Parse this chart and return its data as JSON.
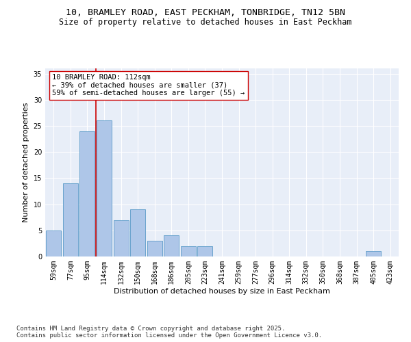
{
  "title1": "10, BRAMLEY ROAD, EAST PECKHAM, TONBRIDGE, TN12 5BN",
  "title2": "Size of property relative to detached houses in East Peckham",
  "xlabel": "Distribution of detached houses by size in East Peckham",
  "ylabel": "Number of detached properties",
  "categories": [
    "59sqm",
    "77sqm",
    "95sqm",
    "114sqm",
    "132sqm",
    "150sqm",
    "168sqm",
    "186sqm",
    "205sqm",
    "223sqm",
    "241sqm",
    "259sqm",
    "277sqm",
    "296sqm",
    "314sqm",
    "332sqm",
    "350sqm",
    "368sqm",
    "387sqm",
    "405sqm",
    "423sqm"
  ],
  "values": [
    5,
    14,
    24,
    26,
    7,
    9,
    3,
    4,
    2,
    2,
    0,
    0,
    0,
    0,
    0,
    0,
    0,
    0,
    0,
    1,
    0
  ],
  "bar_color": "#aec6e8",
  "bar_edge_color": "#5a9ac8",
  "vline_x": 2.5,
  "vline_color": "#cc0000",
  "annotation_text": "10 BRAMLEY ROAD: 112sqm\n← 39% of detached houses are smaller (37)\n59% of semi-detached houses are larger (55) →",
  "annotation_box_color": "#ffffff",
  "annotation_box_edge": "#cc0000",
  "ylim": [
    0,
    36
  ],
  "yticks": [
    0,
    5,
    10,
    15,
    20,
    25,
    30,
    35
  ],
  "background_color": "#e8eef8",
  "footer": "Contains HM Land Registry data © Crown copyright and database right 2025.\nContains public sector information licensed under the Open Government Licence v3.0.",
  "title_fontsize": 9.5,
  "subtitle_fontsize": 8.5,
  "axis_label_fontsize": 8,
  "tick_fontsize": 7,
  "annotation_fontsize": 7.5,
  "footer_fontsize": 6.5
}
